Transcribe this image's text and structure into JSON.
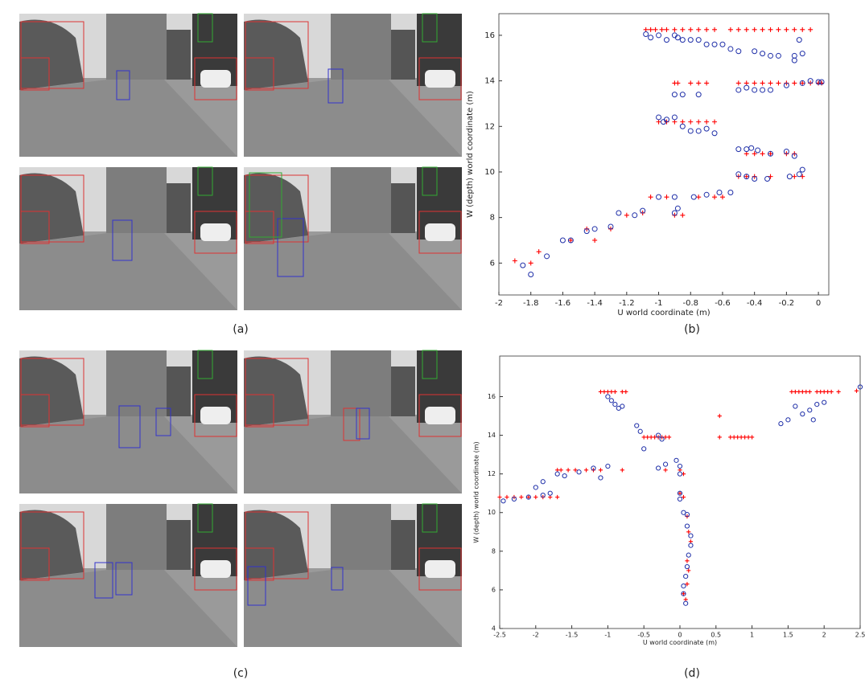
{
  "captions": [
    "(a)",
    "(b)",
    "(c)",
    "(d)"
  ],
  "chart_data": [
    {
      "type": "scatter",
      "x_label": "U world coordinate (m)",
      "y_label": "W (depth) world coordinate (m)",
      "xlim": [
        -2,
        0.065
      ],
      "ylim": [
        4.6,
        16.95
      ],
      "xticks": [
        -2,
        -1.8,
        -1.6,
        -1.4,
        -1.2,
        -1,
        -0.8,
        -0.6,
        -0.4,
        -0.2,
        0
      ],
      "yticks": [
        6,
        8,
        10,
        12,
        14,
        16
      ],
      "series": [
        {
          "marker": "+",
          "color": "#ff0000",
          "x": [
            -1.08,
            -1.05,
            -1.02,
            -0.98,
            -0.95,
            -0.9,
            -0.85,
            -0.8,
            -0.75,
            -0.7,
            -0.65,
            -0.55,
            -0.5,
            -0.45,
            -0.4,
            -0.35,
            -0.3,
            -0.25,
            -0.2,
            -0.15,
            -0.1,
            -0.05,
            -0.9,
            -0.88,
            -0.8,
            -0.75,
            -0.7,
            -0.5,
            -0.45,
            -0.4,
            -0.35,
            -0.3,
            -0.25,
            -0.2,
            -0.15,
            -0.1,
            -0.05,
            0,
            0.02,
            -1.0,
            -0.95,
            -0.9,
            -0.85,
            -0.8,
            -0.75,
            -0.7,
            -0.65,
            -0.45,
            -0.4,
            -0.35,
            -0.3,
            -0.2,
            -0.15,
            -0.5,
            -0.45,
            -0.4,
            -0.3,
            -0.15,
            -0.1,
            -1.9,
            -1.8,
            -1.75,
            -1.55,
            -1.45,
            -1.4,
            -1.3,
            -1.2,
            -1.1,
            -1.05,
            -0.95,
            -0.9,
            -0.85,
            -0.75,
            -0.65,
            -0.6
          ],
          "values": [
            16.25,
            16.25,
            16.25,
            16.25,
            16.25,
            16.25,
            16.25,
            16.25,
            16.25,
            16.25,
            16.25,
            16.25,
            16.25,
            16.25,
            16.25,
            16.25,
            16.25,
            16.25,
            16.25,
            16.25,
            16.25,
            16.25,
            13.9,
            13.9,
            13.9,
            13.9,
            13.9,
            13.9,
            13.9,
            13.9,
            13.9,
            13.9,
            13.9,
            13.9,
            13.9,
            13.9,
            13.9,
            13.9,
            13.9,
            12.2,
            12.2,
            12.2,
            12.2,
            12.2,
            12.2,
            12.2,
            12.2,
            10.8,
            10.8,
            10.8,
            10.8,
            10.8,
            10.8,
            9.8,
            9.8,
            9.8,
            9.8,
            9.8,
            9.8,
            6.1,
            6.0,
            6.5,
            7.0,
            7.5,
            7.0,
            7.5,
            8.1,
            8.2,
            8.9,
            8.9,
            8.1,
            8.1,
            8.9,
            8.9,
            8.9
          ]
        },
        {
          "marker": "o",
          "color": "#1f2fa8",
          "x": [
            -1.08,
            -1.05,
            -1.0,
            -0.95,
            -0.9,
            -0.88,
            -0.85,
            -0.8,
            -0.75,
            -0.7,
            -0.65,
            -0.6,
            -0.55,
            -0.5,
            -0.4,
            -0.35,
            -0.3,
            -0.25,
            -0.15,
            -0.1,
            -0.12,
            -0.15,
            -0.9,
            -0.85,
            -0.75,
            -0.5,
            -0.45,
            -0.4,
            -0.35,
            -0.3,
            -0.2,
            -0.1,
            0,
            0.02,
            -0.05,
            -1.0,
            -0.97,
            -0.95,
            -0.9,
            -0.85,
            -0.8,
            -0.75,
            -0.7,
            -0.65,
            -0.5,
            -0.45,
            -0.42,
            -0.38,
            -0.3,
            -0.2,
            -0.15,
            -0.5,
            -0.45,
            -0.4,
            -0.32,
            -0.1,
            -0.12,
            -0.18,
            -1.85,
            -1.8,
            -1.7,
            -1.6,
            -1.55,
            -1.45,
            -1.4,
            -1.3,
            -1.25,
            -1.15,
            -1.1,
            -1.0,
            -0.9,
            -0.88,
            -0.9,
            -0.78,
            -0.7,
            -0.62,
            -0.55
          ],
          "values": [
            16.05,
            15.9,
            16.0,
            15.8,
            16.0,
            15.9,
            15.8,
            15.8,
            15.8,
            15.6,
            15.6,
            15.6,
            15.4,
            15.3,
            15.3,
            15.2,
            15.1,
            15.1,
            15.1,
            15.2,
            15.8,
            14.9,
            13.4,
            13.4,
            13.4,
            13.6,
            13.7,
            13.6,
            13.6,
            13.6,
            13.8,
            13.9,
            13.95,
            13.95,
            14.0,
            12.4,
            12.2,
            12.3,
            12.4,
            12.0,
            11.8,
            11.8,
            11.9,
            11.7,
            11.0,
            11.0,
            11.05,
            10.95,
            10.8,
            10.9,
            10.7,
            9.9,
            9.8,
            9.7,
            9.7,
            10.1,
            9.9,
            9.8,
            5.9,
            5.5,
            6.3,
            7.0,
            7.0,
            7.4,
            7.5,
            7.6,
            8.2,
            8.1,
            8.3,
            8.9,
            8.9,
            8.4,
            8.2,
            8.9,
            9.0,
            9.1,
            9.1
          ]
        }
      ]
    },
    {
      "type": "scatter",
      "x_label": "U world coordinate (m)",
      "y_label": "W (depth) world coordinate (m)",
      "xlim": [
        -2.5,
        2.5
      ],
      "ylim": [
        4,
        18.1
      ],
      "xticks": [
        -2.5,
        -2,
        -1.5,
        -1,
        -0.5,
        0,
        0.5,
        1,
        1.5,
        2,
        2.5
      ],
      "yticks": [
        4,
        6,
        8,
        10,
        12,
        14,
        16
      ],
      "series": [
        {
          "marker": "+",
          "color": "#ff0000",
          "x": [
            -1.1,
            -1.05,
            -1.0,
            -0.95,
            -0.9,
            -0.8,
            -0.75,
            1.55,
            1.6,
            1.65,
            1.7,
            1.75,
            1.8,
            1.9,
            1.95,
            2.0,
            2.05,
            2.1,
            2.2,
            2.45,
            -0.5,
            -0.45,
            -0.4,
            -0.35,
            -0.3,
            -0.25,
            -0.2,
            -0.15,
            0.55,
            0.7,
            0.75,
            0.8,
            0.85,
            0.9,
            0.95,
            1.0,
            -1.7,
            -1.65,
            -1.55,
            -1.45,
            -1.3,
            -1.2,
            -1.1,
            -0.8,
            -2.5,
            -2.4,
            -2.3,
            -2.2,
            -2.1,
            -2.0,
            -1.9,
            -1.8,
            -1.7,
            0.0,
            0.05,
            -0.2,
            0,
            0.05,
            0.1,
            0.12,
            0.15,
            0.1,
            0.12,
            0.1,
            0.05,
            0.08,
            0.55
          ],
          "values": [
            16.25,
            16.25,
            16.25,
            16.25,
            16.25,
            16.25,
            16.25,
            16.25,
            16.25,
            16.25,
            16.25,
            16.25,
            16.25,
            16.25,
            16.25,
            16.25,
            16.25,
            16.25,
            16.25,
            16.3,
            13.9,
            13.9,
            13.9,
            13.9,
            13.9,
            13.9,
            13.9,
            13.9,
            13.9,
            13.9,
            13.9,
            13.9,
            13.9,
            13.9,
            13.9,
            13.9,
            12.2,
            12.2,
            12.2,
            12.2,
            12.2,
            12.2,
            12.2,
            12.2,
            10.8,
            10.8,
            10.8,
            10.8,
            10.8,
            10.8,
            10.8,
            10.8,
            10.8,
            12.2,
            12.0,
            12.2,
            11.0,
            10.8,
            9.8,
            9.0,
            8.5,
            7.5,
            7.0,
            6.3,
            5.8,
            5.5,
            15.0
          ]
        },
        {
          "marker": "o",
          "color": "#1f2fa8",
          "x": [
            -1.0,
            -0.95,
            -0.9,
            -0.85,
            -0.8,
            -0.6,
            -0.55,
            -0.5,
            -0.3,
            -0.25,
            -0.2,
            -0.05,
            0,
            0.0,
            -0.3,
            1.4,
            1.5,
            1.6,
            1.7,
            1.8,
            1.9,
            2.0,
            1.85,
            2.5,
            -2.0,
            -1.9,
            -1.7,
            -1.6,
            -1.4,
            -1.2,
            -1.0,
            -1.1,
            -2.45,
            -2.3,
            -2.1,
            -1.9,
            -1.8,
            0,
            0,
            0.05,
            0.1,
            0.1,
            0.15,
            0.15,
            0.12,
            0.1,
            0.08,
            0.05,
            0.05,
            0.08
          ],
          "values": [
            16.0,
            15.8,
            15.6,
            15.4,
            15.5,
            14.5,
            14.2,
            13.3,
            14.0,
            13.8,
            12.5,
            12.7,
            12.4,
            12.0,
            12.3,
            14.6,
            14.8,
            15.5,
            15.1,
            15.3,
            15.6,
            15.7,
            14.8,
            16.5,
            11.3,
            11.6,
            12.0,
            11.9,
            12.1,
            12.3,
            12.4,
            11.8,
            10.6,
            10.7,
            10.8,
            10.9,
            11.0,
            11.0,
            10.7,
            10.0,
            9.9,
            9.3,
            8.8,
            8.3,
            7.8,
            7.2,
            6.7,
            6.2,
            5.8,
            5.3
          ]
        }
      ]
    }
  ]
}
